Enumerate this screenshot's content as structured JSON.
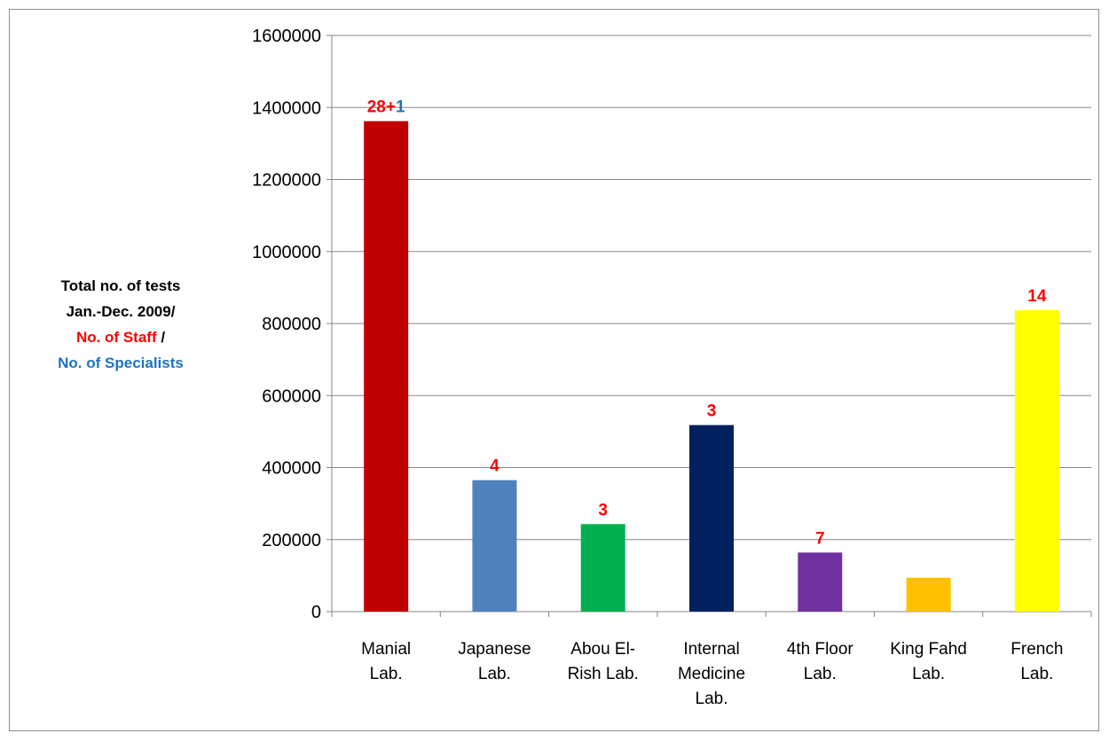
{
  "chart_data": {
    "type": "bar",
    "ylabel_lines": [
      {
        "text": "Total no. of tests",
        "color": "#000000"
      },
      {
        "text": "Jan.-Dec. 2009/",
        "color": "#000000"
      },
      {
        "text": "No. of Staff",
        "color": "#ff0000",
        "suffix": " /"
      },
      {
        "text": "No. of Specialists",
        "color": "#1f73c0"
      }
    ],
    "categories": [
      [
        "Manial",
        "Lab."
      ],
      [
        "Japanese",
        "Lab."
      ],
      [
        "Abou El-",
        "Rish Lab."
      ],
      [
        "Internal",
        "Medicine",
        "Lab."
      ],
      [
        "4th Floor",
        "Lab."
      ],
      [
        "King Fahd",
        "Lab."
      ],
      [
        "French",
        "Lab."
      ]
    ],
    "values": [
      1362000,
      365000,
      243000,
      518000,
      164000,
      94000,
      837000
    ],
    "colors": [
      "#c00000",
      "#4f81bd",
      "#00b050",
      "#002060",
      "#7030a0",
      "#ffc000",
      "#ffff00"
    ],
    "data_labels": [
      [
        {
          "text": "28+",
          "color": "#ff0000"
        },
        {
          "text": "1",
          "color": "#1f73c0"
        }
      ],
      [
        {
          "text": "4",
          "color": "#ff0000"
        }
      ],
      [
        {
          "text": "3",
          "color": "#ff0000"
        }
      ],
      [
        {
          "text": "3",
          "color": "#ff0000"
        }
      ],
      [
        {
          "text": "7",
          "color": "#ff0000"
        }
      ],
      [],
      [
        {
          "text": "14",
          "color": "#ff0000"
        }
      ]
    ],
    "ylim": [
      0,
      1600000
    ],
    "yticks": [
      0,
      200000,
      400000,
      600000,
      800000,
      1000000,
      1200000,
      1400000,
      1600000
    ],
    "grid": true
  }
}
